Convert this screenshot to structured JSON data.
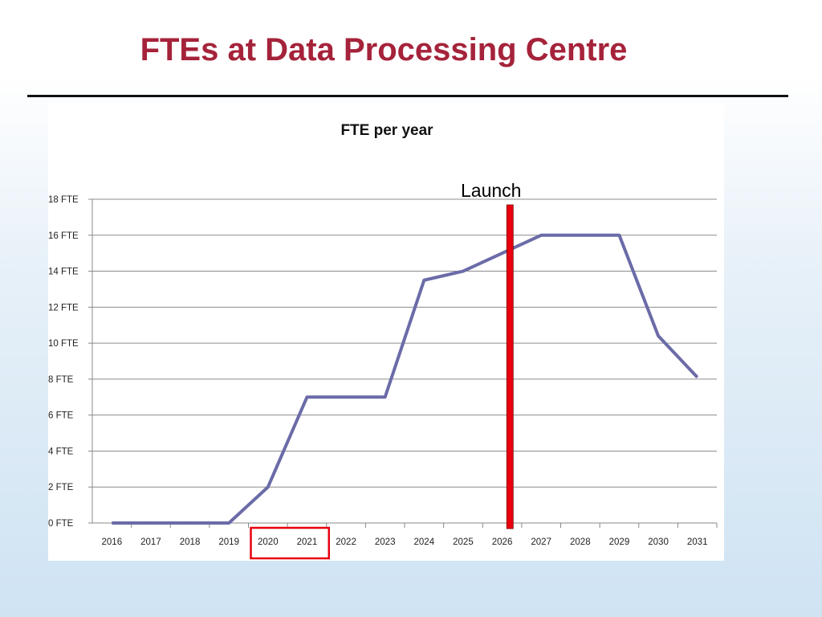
{
  "slide": {
    "title": "FTEs at Data Processing Centre"
  },
  "annotation": {
    "launch_label": "Launch",
    "launch_year": 2026.2,
    "highlight_years": [
      "2020",
      "2021"
    ],
    "launch_color": "#e8000e",
    "highlight_color": "#e8000e"
  },
  "chart_data": {
    "type": "line",
    "title": "FTE per year",
    "xlabel": "",
    "ylabel": "",
    "categories": [
      "2016",
      "2017",
      "2018",
      "2019",
      "2020",
      "2021",
      "2022",
      "2023",
      "2024",
      "2025",
      "2026",
      "2027",
      "2028",
      "2029",
      "2030",
      "2031"
    ],
    "series": [
      {
        "values": [
          0,
          0,
          0,
          0,
          2,
          7,
          7,
          7,
          13.5,
          14,
          15,
          16,
          16,
          16,
          10.4,
          8.1
        ],
        "color": "#6b6ba8"
      }
    ],
    "ylim": [
      0,
      18
    ],
    "yticks": [
      0,
      2,
      4,
      6,
      8,
      10,
      12,
      14,
      16,
      18
    ],
    "ytick_labels": [
      "0 FTE",
      "2 FTE",
      "4 FTE",
      "6 FTE",
      "8 FTE",
      "10 FTE",
      "12 FTE",
      "14 FTE",
      "16 FTE",
      "18 FTE"
    ],
    "grid": true,
    "legend": "none"
  }
}
